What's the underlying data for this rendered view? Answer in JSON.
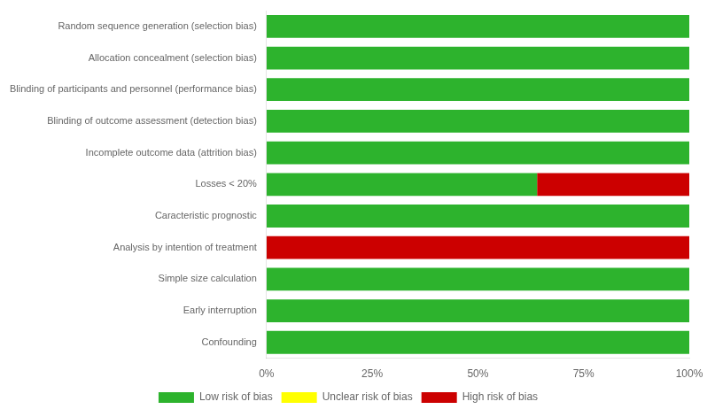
{
  "chart_data": {
    "type": "bar",
    "orientation": "horizontal",
    "stacked": true,
    "categories": [
      "Random sequence generation (selection bias)",
      "Allocation concealment (selection bias)",
      "Blinding of participants and personnel (performance bias)",
      "Blinding of outcome assessment (detection bias)",
      "Incomplete outcome data (attrition bias)",
      "Losses < 20%",
      "Caracteristic prognostic",
      "Analysis by intention of treatment",
      "Simple size calculation",
      "Early interruption",
      "Confounding"
    ],
    "series": [
      {
        "name": "Low risk of bias",
        "color": "#2db32d",
        "values": [
          100,
          100,
          100,
          100,
          100,
          64,
          100,
          0,
          100,
          100,
          100
        ]
      },
      {
        "name": "Unclear risk of bias",
        "color": "#ffff00",
        "values": [
          0,
          0,
          0,
          0,
          0,
          0,
          0,
          0,
          0,
          0,
          0
        ]
      },
      {
        "name": "High risk of bias",
        "color": "#cc0000",
        "values": [
          0,
          0,
          0,
          0,
          0,
          36,
          0,
          100,
          0,
          0,
          0
        ]
      }
    ],
    "xlim": [
      0,
      100
    ],
    "xticks": [
      {
        "value": 0,
        "label": "0%"
      },
      {
        "value": 25,
        "label": "25%"
      },
      {
        "value": 50,
        "label": "50%"
      },
      {
        "value": 75,
        "label": "75%"
      },
      {
        "value": 100,
        "label": "100%"
      }
    ],
    "grid": false,
    "legend": "bottom"
  }
}
